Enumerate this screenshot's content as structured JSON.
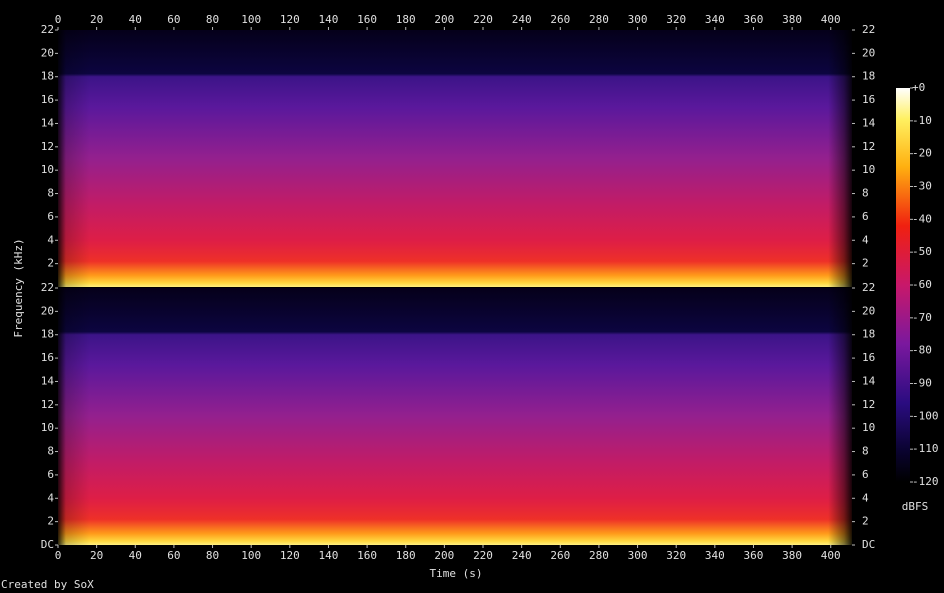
{
  "chart_data": {
    "type": "spectrogram",
    "x_label": "Time (s)",
    "y_label": "Frequency (kHz)",
    "xlim": [
      0,
      411
    ],
    "xticks": [
      0,
      20,
      40,
      60,
      80,
      100,
      120,
      140,
      160,
      180,
      200,
      220,
      240,
      260,
      280,
      300,
      320,
      340,
      360,
      380,
      400
    ],
    "channels": [
      {
        "ylim": [
          0,
          22
        ],
        "yticks": [
          2,
          4,
          6,
          8,
          10,
          12,
          14,
          16,
          18,
          20,
          22
        ]
      },
      {
        "ylim": [
          0,
          22
        ],
        "yticks": [
          {
            "value": 0,
            "label": "DC"
          },
          2,
          4,
          6,
          8,
          10,
          12,
          14,
          16,
          18,
          20,
          22
        ]
      }
    ],
    "colorbar": {
      "label": "dBFS",
      "lim": [
        -120,
        0
      ],
      "ticks": [
        {
          "value": 0,
          "label": "+0"
        },
        -10,
        -20,
        -30,
        -40,
        -50,
        -60,
        -70,
        -80,
        -90,
        -100,
        -110,
        -120
      ]
    },
    "credit": "Created by SoX"
  }
}
